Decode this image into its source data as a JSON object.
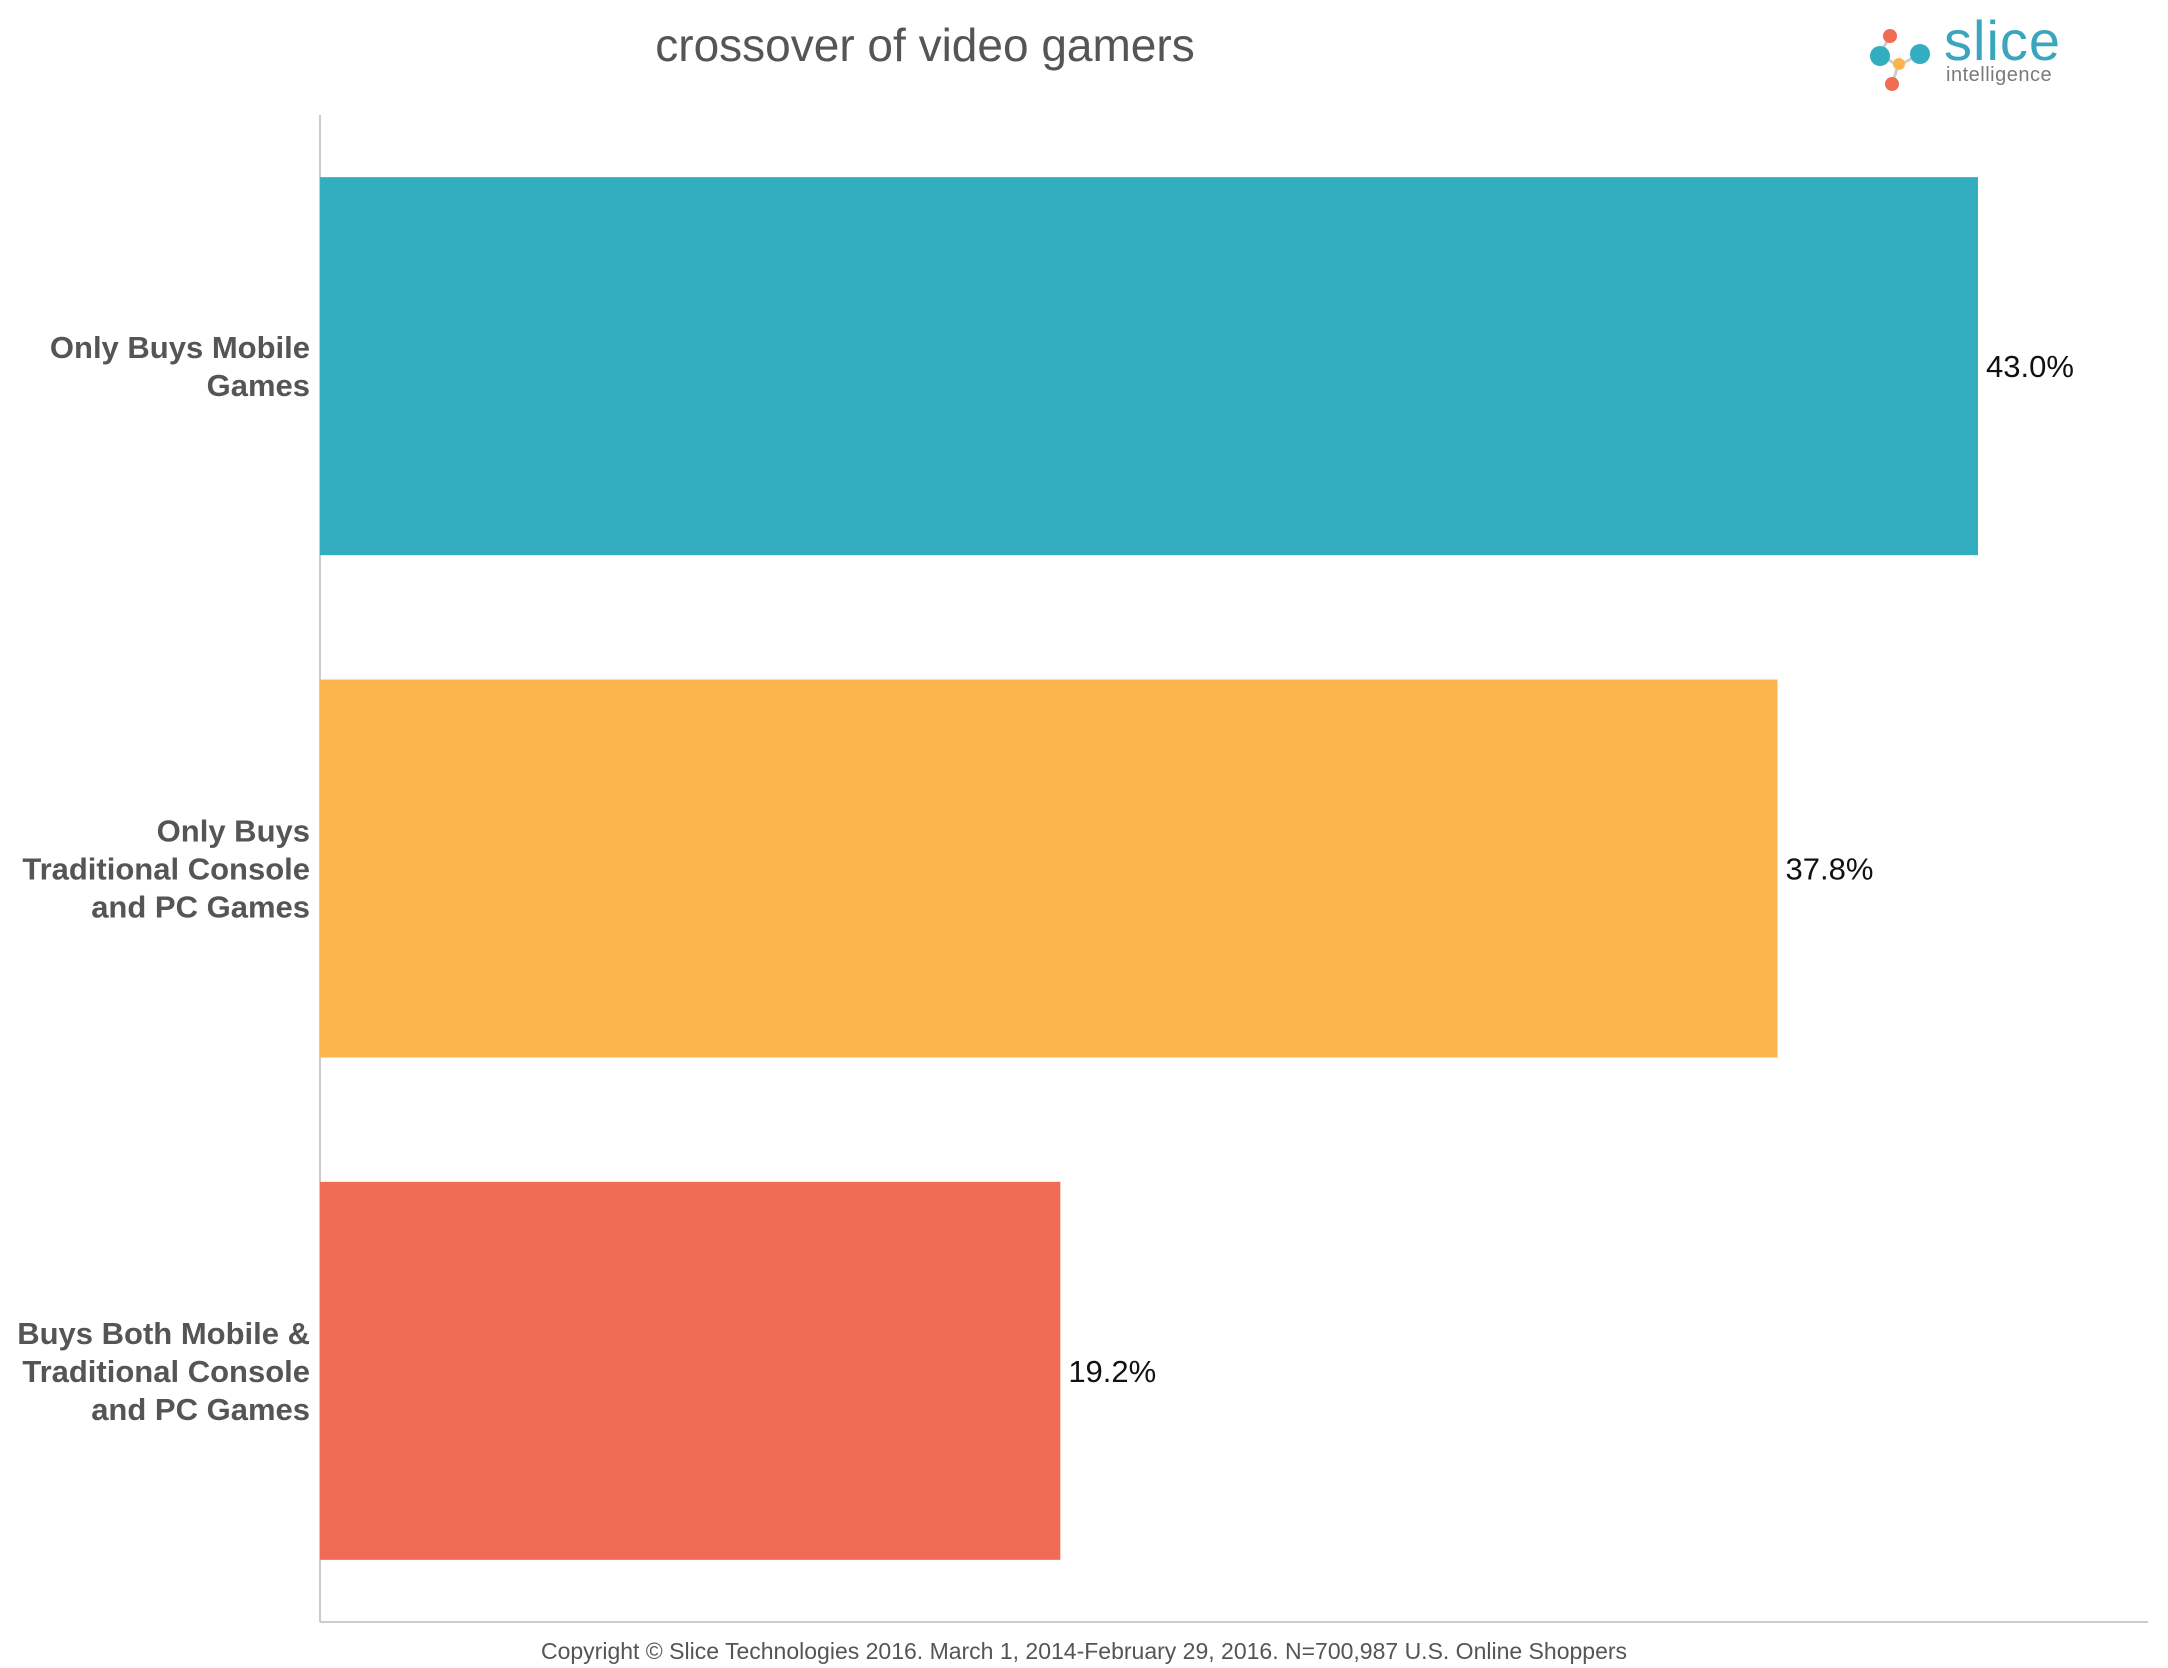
{
  "chart_data": {
    "type": "bar",
    "orientation": "horizontal",
    "title": "crossover of video gamers",
    "categories": [
      [
        "Only Buys Mobile",
        "Games"
      ],
      [
        "Only Buys",
        "Traditional Console",
        "and PC Games"
      ],
      [
        "Buys Both Mobile &",
        "Traditional Console",
        "and PC Games"
      ]
    ],
    "values": [
      43.0,
      37.8,
      19.2
    ],
    "value_labels": [
      "43.0%",
      "37.8%",
      "19.2%"
    ],
    "colors": [
      "#33adc0",
      "#fbb54c",
      "#ef6b53"
    ],
    "xlim": [
      0,
      50
    ],
    "xlabel": "",
    "ylabel": "",
    "grid": false,
    "legend": "none"
  },
  "footer": {
    "text": "Copyright © Slice Technologies 2016. March 1, 2014-February 29, 2016. N=700,987 U.S. Online Shoppers"
  },
  "logo": {
    "word": "slice",
    "sub": "intelligence",
    "colors": [
      "#ef6b53",
      "#33adc0",
      "#fbb54c"
    ]
  }
}
